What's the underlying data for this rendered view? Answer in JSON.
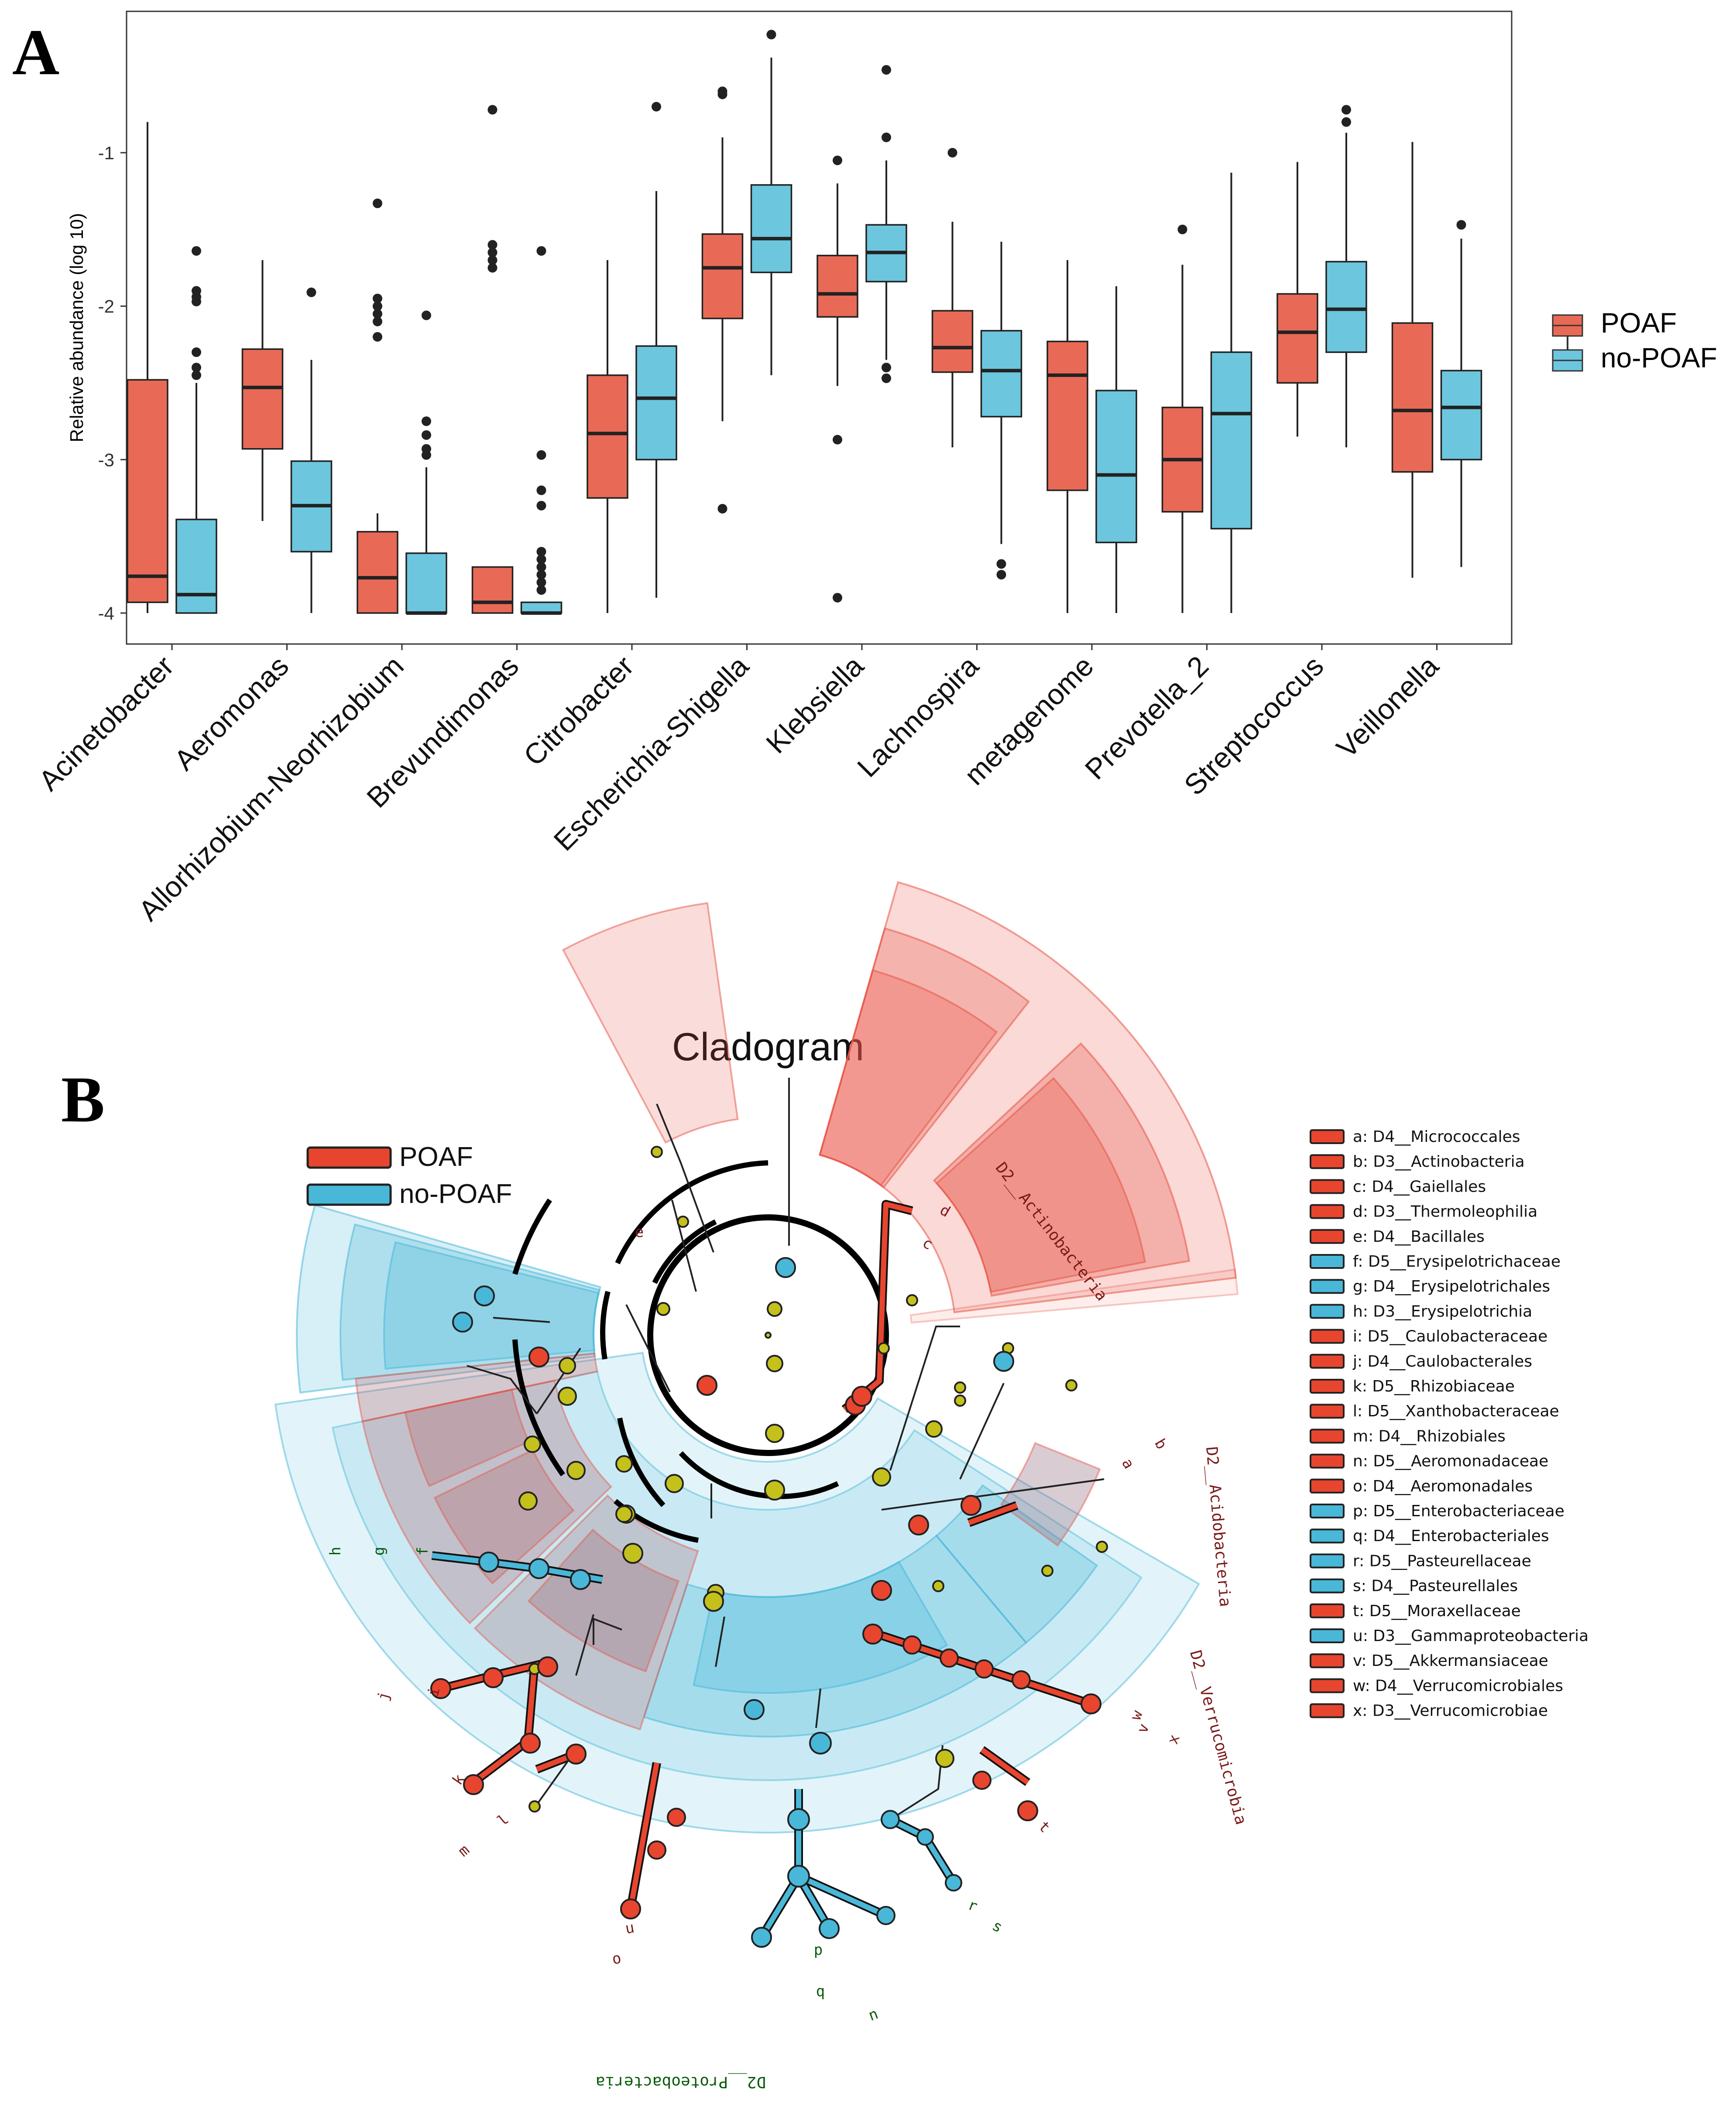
{
  "panel_a": {
    "letter": "A",
    "legend": [
      {
        "label": "POAF",
        "color": "#E86A56"
      },
      {
        "label": "no-POAF",
        "color": "#6CC6DE"
      }
    ]
  },
  "panel_b": {
    "letter": "B",
    "title": "Cladogram",
    "legend": [
      {
        "label": "POAF",
        "color": "#E8452F"
      },
      {
        "label": "no-POAF",
        "color": "#49B8D8"
      }
    ],
    "taxa": [
      {
        "key": "a",
        "label": "a: D4__Micrococcales",
        "group": "POAF"
      },
      {
        "key": "b",
        "label": "b: D3__Actinobacteria",
        "group": "POAF"
      },
      {
        "key": "c",
        "label": "c: D4__Gaiellales",
        "group": "POAF"
      },
      {
        "key": "d",
        "label": "d: D3__Thermoleophilia",
        "group": "POAF"
      },
      {
        "key": "e",
        "label": "e: D4__Bacillales",
        "group": "POAF"
      },
      {
        "key": "f",
        "label": "f: D5__Erysipelotrichaceae",
        "group": "no-POAF"
      },
      {
        "key": "g",
        "label": "g: D4__Erysipelotrichales",
        "group": "no-POAF"
      },
      {
        "key": "h",
        "label": "h: D3__Erysipelotrichia",
        "group": "no-POAF"
      },
      {
        "key": "i",
        "label": "i: D5__Caulobacteraceae",
        "group": "POAF"
      },
      {
        "key": "j",
        "label": "j: D4__Caulobacterales",
        "group": "POAF"
      },
      {
        "key": "k",
        "label": "k: D5__Rhizobiaceae",
        "group": "POAF"
      },
      {
        "key": "l",
        "label": "l: D5__Xanthobacteraceae",
        "group": "POAF"
      },
      {
        "key": "m",
        "label": "m: D4__Rhizobiales",
        "group": "POAF"
      },
      {
        "key": "n",
        "label": "n: D5__Aeromonadaceae",
        "group": "POAF"
      },
      {
        "key": "o",
        "label": "o: D4__Aeromonadales",
        "group": "POAF"
      },
      {
        "key": "p",
        "label": "p: D5__Enterobacteriaceae",
        "group": "no-POAF"
      },
      {
        "key": "q",
        "label": "q: D4__Enterobacteriales",
        "group": "no-POAF"
      },
      {
        "key": "r",
        "label": "r: D5__Pasteurellaceae",
        "group": "no-POAF"
      },
      {
        "key": "s",
        "label": "s: D4__Pasteurellales",
        "group": "no-POAF"
      },
      {
        "key": "t",
        "label": "t: D5__Moraxellaceae",
        "group": "POAF"
      },
      {
        "key": "u",
        "label": "u: D3__Gammaproteobacteria",
        "group": "no-POAF"
      },
      {
        "key": "v",
        "label": "v: D5__Akkermansiaceae",
        "group": "POAF"
      },
      {
        "key": "w",
        "label": "w: D4__Verrucomicrobiales",
        "group": "POAF"
      },
      {
        "key": "x",
        "label": "x: D3__Verrucomicrobiae",
        "group": "POAF"
      }
    ],
    "phyla": [
      "D2__Actinobacteria",
      "D2__Acidobacteria",
      "D2__Verrucomicrobia",
      "D2__Proteobacteria"
    ]
  },
  "chart_data": [
    {
      "type": "box",
      "title": "",
      "xlabel": "",
      "ylabel": "Relative abundance (log 10)",
      "ylim": [
        -4.1,
        -0.2
      ],
      "yticks": [
        -4,
        -3,
        -2,
        -1
      ],
      "ytick_labels": [
        "-4",
        "-3",
        "-2",
        "-1"
      ],
      "grid": false,
      "legend_position": "right",
      "categories": [
        "Acinetobacter",
        "Aeromonas",
        "Allorhizobium-Neorhizobium",
        "Brevundimonas",
        "Citrobacter",
        "Escherichia-Shigella",
        "Klebsiella",
        "Lachnospira",
        "metagenome",
        "Prevotella_2",
        "Streptococcus",
        "Veillonella"
      ],
      "series": [
        {
          "name": "POAF",
          "color": "#E86A56",
          "boxes": [
            {
              "min": -4.0,
              "q1": -3.93,
              "median": -3.76,
              "q3": -2.48,
              "max": -0.8,
              "outliers": []
            },
            {
              "min": -3.4,
              "q1": -2.93,
              "median": -2.53,
              "q3": -2.28,
              "max": -1.7,
              "outliers": []
            },
            {
              "min": -4.0,
              "q1": -4.0,
              "median": -3.77,
              "q3": -3.47,
              "max": -3.35,
              "outliers": [
                -1.33,
                -1.95,
                -2.0,
                -2.05,
                -2.1,
                -2.2
              ]
            },
            {
              "min": -4.0,
              "q1": -4.0,
              "median": -3.93,
              "q3": -3.7,
              "max": -3.7,
              "outliers": [
                -0.72,
                -1.6,
                -1.65,
                -1.7,
                -1.75
              ]
            },
            {
              "min": -4.0,
              "q1": -3.25,
              "median": -2.83,
              "q3": -2.45,
              "max": -1.7,
              "outliers": []
            },
            {
              "min": -2.75,
              "q1": -2.08,
              "median": -1.75,
              "q3": -1.53,
              "max": -0.9,
              "outliers": [
                -0.6,
                -0.62,
                -3.32
              ]
            },
            {
              "min": -2.52,
              "q1": -2.07,
              "median": -1.92,
              "q3": -1.67,
              "max": -1.2,
              "outliers": [
                -1.05,
                -2.87,
                -3.9
              ]
            },
            {
              "min": -2.92,
              "q1": -2.43,
              "median": -2.27,
              "q3": -2.03,
              "max": -1.45,
              "outliers": [
                -1.0
              ]
            },
            {
              "min": -4.0,
              "q1": -3.2,
              "median": -2.45,
              "q3": -2.23,
              "max": -1.7,
              "outliers": []
            },
            {
              "min": -4.0,
              "q1": -3.34,
              "median": -3.0,
              "q3": -2.66,
              "max": -1.73,
              "outliers": [
                -1.5
              ]
            },
            {
              "min": -2.85,
              "q1": -2.5,
              "median": -2.17,
              "q3": -1.92,
              "max": -1.06,
              "outliers": []
            },
            {
              "min": -3.77,
              "q1": -3.08,
              "median": -2.68,
              "q3": -2.11,
              "max": -0.93,
              "outliers": []
            }
          ]
        },
        {
          "name": "no-POAF",
          "color": "#6CC6DE",
          "boxes": [
            {
              "min": -4.0,
              "q1": -4.0,
              "median": -3.88,
              "q3": -3.39,
              "max": -2.5,
              "outliers": [
                -1.64,
                -1.9,
                -1.94,
                -1.97,
                -2.3,
                -2.4,
                -2.45
              ]
            },
            {
              "min": -4.0,
              "q1": -3.6,
              "median": -3.3,
              "q3": -3.01,
              "max": -2.35,
              "outliers": [
                -1.91
              ]
            },
            {
              "min": -4.0,
              "q1": -4.0,
              "median": -4.0,
              "q3": -3.61,
              "max": -3.05,
              "outliers": [
                -2.06,
                -2.75,
                -2.84,
                -2.93,
                -2.97
              ]
            },
            {
              "min": -4.0,
              "q1": -4.0,
              "median": -4.0,
              "q3": -3.93,
              "max": -3.93,
              "outliers": [
                -1.64,
                -2.97,
                -3.2,
                -3.3,
                -3.6,
                -3.65,
                -3.7,
                -3.75,
                -3.8,
                -3.85
              ]
            },
            {
              "min": -3.9,
              "q1": -3.0,
              "median": -2.6,
              "q3": -2.26,
              "max": -1.25,
              "outliers": [
                -0.7
              ]
            },
            {
              "min": -2.45,
              "q1": -1.78,
              "median": -1.56,
              "q3": -1.21,
              "max": -0.38,
              "outliers": [
                -0.23
              ]
            },
            {
              "min": -2.35,
              "q1": -1.84,
              "median": -1.65,
              "q3": -1.47,
              "max": -1.05,
              "outliers": [
                -0.46,
                -0.9,
                -2.4,
                -2.47
              ]
            },
            {
              "min": -3.55,
              "q1": -2.72,
              "median": -2.42,
              "q3": -2.16,
              "max": -1.58,
              "outliers": [
                -3.68,
                -3.75
              ]
            },
            {
              "min": -4.0,
              "q1": -3.54,
              "median": -3.1,
              "q3": -2.55,
              "max": -1.87,
              "outliers": []
            },
            {
              "min": -4.0,
              "q1": -3.45,
              "median": -2.7,
              "q3": -2.3,
              "max": -1.13,
              "outliers": []
            },
            {
              "min": -2.92,
              "q1": -2.3,
              "median": -2.02,
              "q3": -1.71,
              "max": -0.87,
              "outliers": [
                -0.72,
                -0.8
              ]
            },
            {
              "min": -3.7,
              "q1": -3.0,
              "median": -2.66,
              "q3": -2.42,
              "max": -1.56,
              "outliers": [
                -1.47
              ]
            }
          ]
        }
      ]
    },
    {
      "type": "cladogram",
      "title": "Cladogram",
      "groups": [
        "POAF",
        "no-POAF"
      ]
    }
  ]
}
